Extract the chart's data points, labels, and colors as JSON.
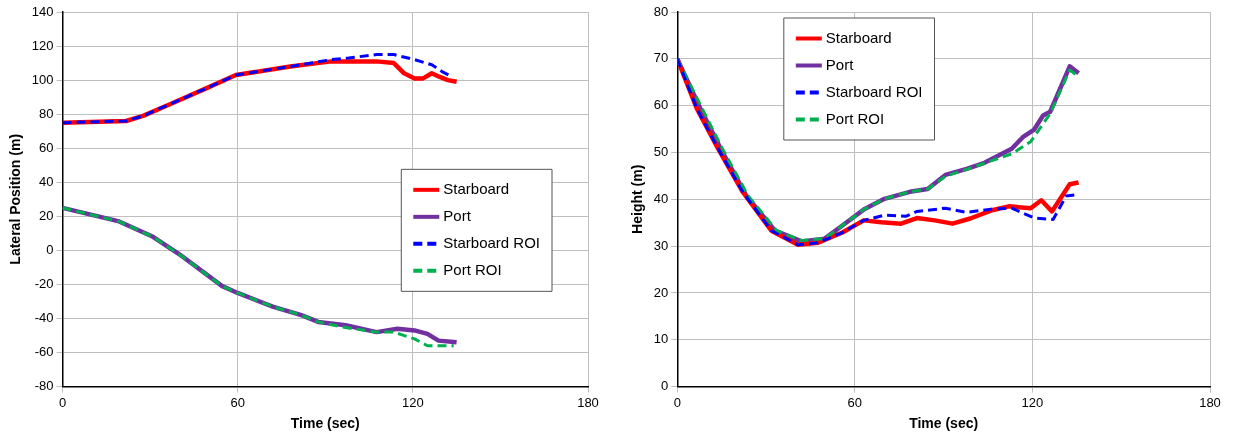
{
  "chart_data": [
    {
      "type": "line",
      "xlabel": "Time (sec)",
      "ylabel": "Lateral Position (m)",
      "xlim": [
        0,
        180
      ],
      "xticks": [
        0,
        60,
        120,
        180
      ],
      "ylim": [
        -80,
        140
      ],
      "yticks": [
        -80,
        -60,
        -40,
        -20,
        0,
        20,
        40,
        60,
        80,
        100,
        120,
        140
      ],
      "grid": true,
      "legend": "right",
      "marker": "none",
      "series": [
        {
          "name": "Starboard",
          "color": "#ff0000",
          "line_style": "solid",
          "x": [
            0,
            21.8,
            27.6,
            37,
            49,
            59.4,
            78,
            92,
            102,
            107.6,
            113.5,
            117,
            120.6,
            123.5,
            126.5,
            129,
            132,
            135
          ],
          "values": [
            75,
            76,
            79,
            86,
            95,
            103,
            108,
            111,
            111,
            111,
            110,
            104,
            101,
            101,
            104,
            102,
            100,
            99
          ]
        },
        {
          "name": "Port",
          "color": "#7030a0",
          "line_style": "solid",
          "x": [
            0,
            19.4,
            31,
            40.6,
            54.7,
            60,
            72,
            81.8,
            87.6,
            97,
            107.6,
            114.7,
            120.6,
            125,
            128.8,
            135
          ],
          "values": [
            25,
            17,
            8,
            -3,
            -21,
            -25,
            -33,
            -38,
            -42,
            -44,
            -48,
            -46,
            -47,
            -49,
            -53,
            -54
          ]
        },
        {
          "name": "Starboard ROI",
          "color": "#0000ff",
          "line_style": "dashed",
          "x": [
            0,
            21.8,
            27.6,
            37,
            49,
            59.4,
            78,
            92,
            98,
            107.6,
            113.5,
            120.6,
            126.5,
            130,
            133.5
          ],
          "values": [
            75,
            76,
            79,
            86,
            95,
            103,
            108,
            112,
            113,
            115,
            115,
            112,
            109,
            105,
            102
          ]
        },
        {
          "name": "Port ROI",
          "color": "#00b050",
          "line_style": "dashed",
          "x": [
            0,
            19.4,
            31,
            40.6,
            54.7,
            60,
            72,
            81.8,
            87.6,
            95.8,
            107.6,
            113.5,
            120.6,
            125,
            134
          ],
          "values": [
            25,
            17,
            8,
            -3,
            -21,
            -25,
            -33,
            -38,
            -42,
            -45,
            -48,
            -48,
            -52,
            -56,
            -56
          ]
        }
      ]
    },
    {
      "type": "line",
      "xlabel": "Time (sec)",
      "ylabel": "Height (m)",
      "xlim": [
        0,
        180
      ],
      "xticks": [
        0,
        60,
        120,
        180
      ],
      "ylim": [
        0,
        80
      ],
      "yticks": [
        0,
        10,
        20,
        30,
        40,
        50,
        60,
        70,
        80
      ],
      "grid": true,
      "legend": "top left",
      "marker": "none",
      "series": [
        {
          "name": "Starboard",
          "color": "#ff0000",
          "line_style": "solid",
          "x": [
            0,
            6.6,
            13.8,
            22.2,
            31.8,
            40.8,
            47.4,
            55.8,
            63,
            69,
            75.6,
            81,
            87,
            93,
            99,
            106,
            112,
            119.4,
            123,
            126.6,
            132.6,
            135.6
          ],
          "values": [
            70,
            59.4,
            50.8,
            41.5,
            33.3,
            30.3,
            30.7,
            32.9,
            35.5,
            35.1,
            34.8,
            36,
            35.5,
            34.8,
            35.9,
            37.6,
            38.5,
            38.1,
            39.8,
            37.4,
            43.2,
            43.6
          ]
        },
        {
          "name": "Port",
          "color": "#7030a0",
          "line_style": "solid",
          "x": [
            0,
            7.8,
            15,
            23.4,
            33,
            42,
            49.8,
            55.8,
            63,
            70,
            78.6,
            84.6,
            90.6,
            97.8,
            103.8,
            113,
            117,
            120.6,
            123.6,
            126,
            132.6,
            135.6
          ],
          "values": [
            70,
            59.4,
            50.4,
            40.7,
            33.3,
            31,
            31.6,
            34.4,
            37.8,
            40.1,
            41.6,
            42.2,
            45.2,
            46.5,
            47.8,
            50.8,
            53.4,
            54.9,
            57.9,
            58.7,
            68.4,
            66.9
          ]
        },
        {
          "name": "Starboard ROI",
          "color": "#0000ff",
          "line_style": "dashed",
          "x": [
            0,
            6.6,
            13.8,
            22.2,
            31.8,
            40.8,
            47.4,
            55.8,
            63,
            70,
            77.4,
            81,
            90.6,
            97.8,
            106,
            113,
            120.6,
            127,
            131.4,
            135
          ],
          "values": [
            70,
            59.4,
            50.8,
            41.5,
            33.3,
            30.3,
            30.7,
            32.9,
            35.5,
            36.6,
            36.4,
            37.4,
            38.1,
            37.2,
            37.9,
            38.1,
            36,
            35.7,
            40.7,
            41
          ]
        },
        {
          "name": "Port ROI",
          "color": "#00b050",
          "line_style": "dashed",
          "x": [
            0,
            8.4,
            15.6,
            24,
            33.6,
            42,
            49.8,
            55.8,
            63,
            70,
            78.6,
            84.6,
            90.6,
            97.8,
            106,
            113,
            119.4,
            126,
            132.6,
            135
          ],
          "values": [
            70,
            59.4,
            50.4,
            40.7,
            33.3,
            31.2,
            31.6,
            34.4,
            37.8,
            40.1,
            41.6,
            42.2,
            44.9,
            46.4,
            48.2,
            49.7,
            52.3,
            58.3,
            67.6,
            66.5
          ]
        }
      ]
    }
  ]
}
